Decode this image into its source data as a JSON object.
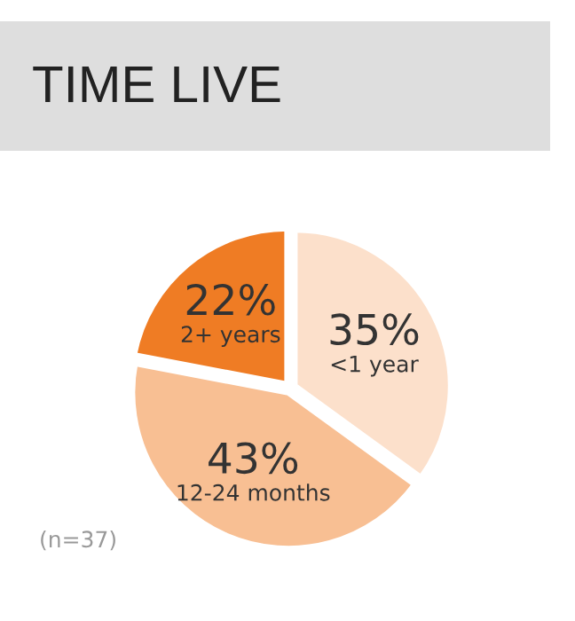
{
  "chart_data": {
    "type": "pie",
    "title": "TIME LIVE",
    "categories": [
      "<1 year",
      "12-24 months",
      "2+ years"
    ],
    "values": [
      35,
      43,
      22
    ],
    "value_labels": [
      "35%",
      "43%",
      "22%"
    ],
    "colors": [
      "#fce0cb",
      "#f8bf93",
      "#ef7c24"
    ],
    "annotations": [
      "(n=37)"
    ],
    "legend": false
  }
}
